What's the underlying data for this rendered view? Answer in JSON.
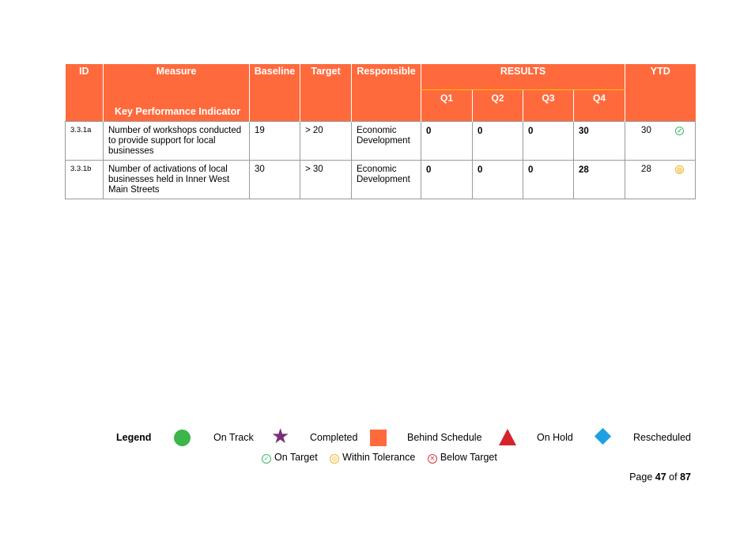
{
  "table": {
    "headers": {
      "id": "ID",
      "measure": "Measure",
      "baseline": "Baseline",
      "target": "Target",
      "responsible": "Responsible",
      "results": "RESULTS",
      "ytd": "YTD",
      "kpi": "Key Performance Indicator",
      "quarters": [
        "Q1",
        "Q2",
        "Q3",
        "Q4"
      ]
    },
    "rows": [
      {
        "id": "3.3.1a",
        "measure": "Number of workshops conducted to provide support for local businesses",
        "baseline": "19",
        "target": "> 20",
        "responsible": "Economic Development",
        "q1": "0",
        "q2": "0",
        "q3": "0",
        "q4": "30",
        "ytd": "30",
        "status": "On Target"
      },
      {
        "id": "3.3.1b",
        "measure": "Number of activations of local businesses held in Inner West Main Streets",
        "baseline": "30",
        "target": "> 30",
        "responsible": "Economic Development",
        "q1": "0",
        "q2": "0",
        "q3": "0",
        "q4": "28",
        "ytd": "28",
        "status": "Within Tolerance"
      }
    ]
  },
  "legend": {
    "title": "Legend",
    "items": [
      "On Track",
      "Completed",
      "Behind Schedule",
      "On Hold",
      "Rescheduled"
    ],
    "tolerance": [
      "On Target",
      "Within Tolerance",
      "Below Target"
    ],
    "colors": {
      "on_track": "#3CB54A",
      "completed": "#7A2E7A",
      "behind_schedule": "#FF6A3D",
      "on_hold": "#D6222A",
      "rescheduled": "#1DA1E4"
    }
  },
  "footer": {
    "page_prefix": "Page",
    "page_current": "47",
    "page_of": "of",
    "page_total": "87"
  },
  "colors": {
    "header_bg": "#FF6A3D",
    "header_text": "#FFFFFF"
  }
}
